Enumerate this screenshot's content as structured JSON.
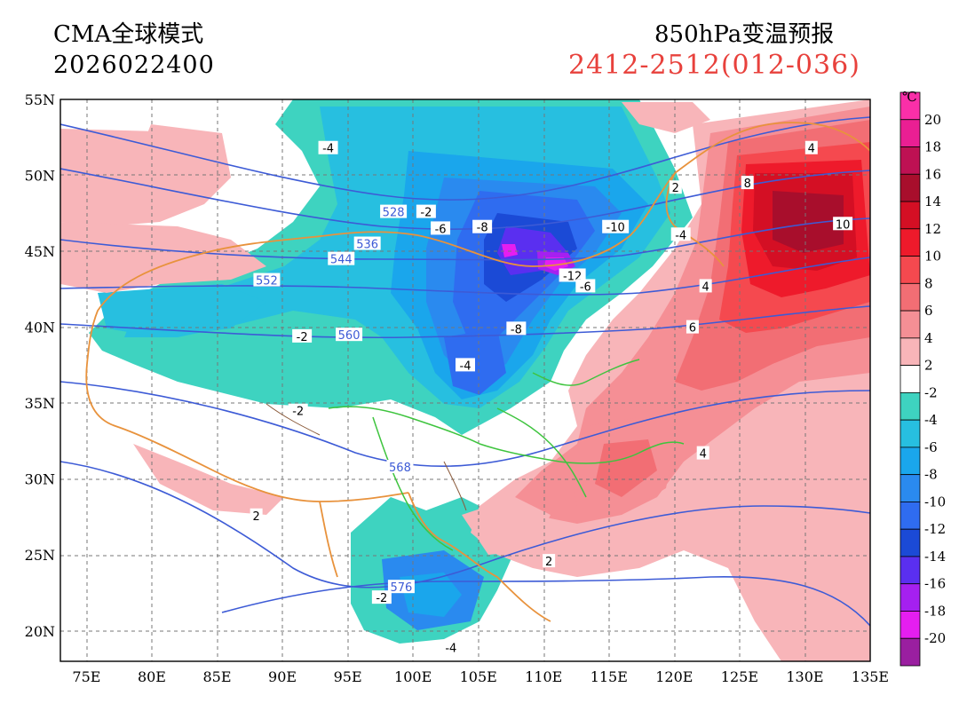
{
  "header": {
    "model": "CMA全球模式",
    "init_time": "2026022400",
    "product": "850hPa变温预报",
    "valid": "2412-2512(012-036)"
  },
  "map": {
    "extent": {
      "lon": [
        73,
        135
      ],
      "lat": [
        18,
        55
      ]
    },
    "lat_ticks": [
      {
        "v": 55,
        "t": "55N"
      },
      {
        "v": 50,
        "t": "50N"
      },
      {
        "v": 45,
        "t": "45N"
      },
      {
        "v": 40,
        "t": "40N"
      },
      {
        "v": 35,
        "t": "35N"
      },
      {
        "v": 30,
        "t": "30N"
      },
      {
        "v": 25,
        "t": "25N"
      },
      {
        "v": 20,
        "t": "20N"
      }
    ],
    "lon_ticks": [
      {
        "v": 75,
        "t": "75E"
      },
      {
        "v": 80,
        "t": "80E"
      },
      {
        "v": 85,
        "t": "85E"
      },
      {
        "v": 90,
        "t": "90E"
      },
      {
        "v": 95,
        "t": "95E"
      },
      {
        "v": 100,
        "t": "100E"
      },
      {
        "v": 105,
        "t": "105E"
      },
      {
        "v": 110,
        "t": "110E"
      },
      {
        "v": 115,
        "t": "115E"
      },
      {
        "v": 120,
        "t": "120E"
      },
      {
        "v": 125,
        "t": "125E"
      },
      {
        "v": 130,
        "t": "130E"
      },
      {
        "v": 135,
        "t": "135E"
      }
    ],
    "contour_labels": [
      {
        "text": "-4",
        "lon": 93.5,
        "lat": 51.8
      },
      {
        "text": "528",
        "lon": 98.5,
        "lat": 47.6,
        "c": "#3d5bd6"
      },
      {
        "text": "-2",
        "lon": 101,
        "lat": 47.6
      },
      {
        "text": "-6",
        "lon": 102.1,
        "lat": 46.5
      },
      {
        "text": "-8",
        "lon": 105.3,
        "lat": 46.6
      },
      {
        "text": "536",
        "lon": 96.5,
        "lat": 45.5,
        "c": "#3d5bd6"
      },
      {
        "text": "544",
        "lon": 94.5,
        "lat": 44.5,
        "c": "#3d5bd6"
      },
      {
        "text": "-10",
        "lon": 115.5,
        "lat": 46.6
      },
      {
        "text": "-4",
        "lon": 120.5,
        "lat": 46.1
      },
      {
        "text": "552",
        "lon": 88.8,
        "lat": 43.1,
        "c": "#3d5bd6"
      },
      {
        "text": "-12",
        "lon": 112.2,
        "lat": 43.4
      },
      {
        "text": "-6",
        "lon": 113.2,
        "lat": 42.7
      },
      {
        "text": "-8",
        "lon": 107.9,
        "lat": 39.9
      },
      {
        "text": "-2",
        "lon": 91.5,
        "lat": 39.4
      },
      {
        "text": "560",
        "lon": 95.1,
        "lat": 39.5,
        "c": "#3d5bd6"
      },
      {
        "text": "-4",
        "lon": 104,
        "lat": 37.5
      },
      {
        "text": "-2",
        "lon": 91.2,
        "lat": 34.5
      },
      {
        "text": "568",
        "lon": 99,
        "lat": 30.8,
        "c": "#3d5bd6"
      },
      {
        "text": "2",
        "lon": 88,
        "lat": 27.6
      },
      {
        "text": "2",
        "lon": 110.4,
        "lat": 24.6
      },
      {
        "text": "-2",
        "lon": 97.6,
        "lat": 22.2
      },
      {
        "text": "576",
        "lon": 99.1,
        "lat": 22.9,
        "c": "#3d5bd6"
      },
      {
        "text": "-4",
        "lon": 102.9,
        "lat": 18.9
      },
      {
        "text": "4",
        "lon": 130.5,
        "lat": 51.8
      },
      {
        "text": "8",
        "lon": 125.6,
        "lat": 49.5
      },
      {
        "text": "2",
        "lon": 120.1,
        "lat": 49.2
      },
      {
        "text": "10",
        "lon": 132.9,
        "lat": 46.8
      },
      {
        "text": "4",
        "lon": 122.4,
        "lat": 42.7
      },
      {
        "text": "6",
        "lon": 121.4,
        "lat": 40
      },
      {
        "text": "4",
        "lon": 122.2,
        "lat": 31.7
      }
    ]
  },
  "colorbar": {
    "unit": "℃",
    "bins": [
      {
        "label": "20",
        "color": "#fa2fa8"
      },
      {
        "label": "18",
        "color": "#ea1f93"
      },
      {
        "label": "16",
        "color": "#be1153"
      },
      {
        "label": "14",
        "color": "#a80e2c"
      },
      {
        "label": "12",
        "color": "#d40f24"
      },
      {
        "label": "10",
        "color": "#ee1a2b"
      },
      {
        "label": "8",
        "color": "#f5494f"
      },
      {
        "label": "6",
        "color": "#f26e74"
      },
      {
        "label": "4",
        "color": "#f58f95"
      },
      {
        "label": "2",
        "color": "#f8b5b9"
      },
      {
        "label": "-2",
        "color": "#ffffff"
      },
      {
        "label": "-4",
        "color": "#3ed3c0"
      },
      {
        "label": "-6",
        "color": "#27bfe0"
      },
      {
        "label": "-8",
        "color": "#1aa6ec"
      },
      {
        "label": "-10",
        "color": "#2a8aef"
      },
      {
        "label": "-12",
        "color": "#2f6cf0"
      },
      {
        "label": "-14",
        "color": "#1b4ad6"
      },
      {
        "label": "-16",
        "color": "#5a2ff0"
      },
      {
        "label": "-18",
        "color": "#a520f0"
      },
      {
        "label": "-20",
        "color": "#e51ef0"
      },
      {
        "label": "",
        "color": "#9a1fa0"
      }
    ]
  }
}
